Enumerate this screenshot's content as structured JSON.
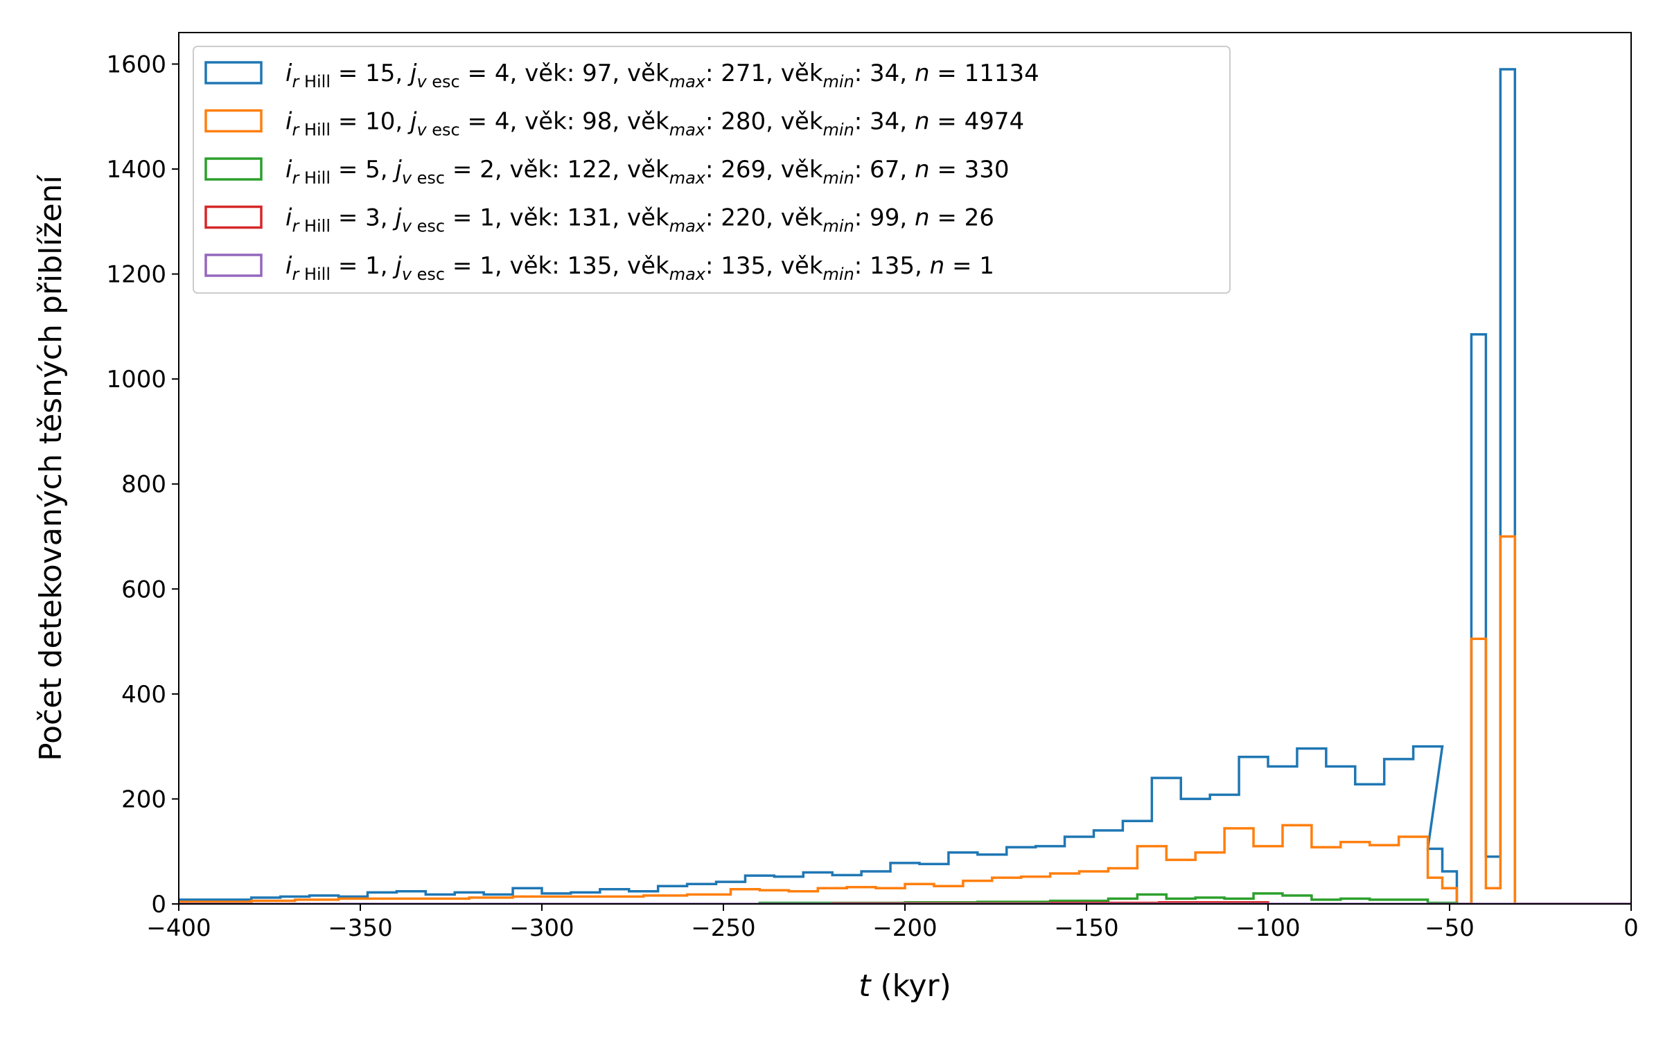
{
  "chart_data": {
    "type": "histogram",
    "xlabel_italic": "t",
    "xlabel_rest": " (kyr)",
    "ylabel": "Počet detekovaných těsných přiblížení",
    "xlim": [
      -400,
      0
    ],
    "ylim": [
      0,
      1660
    ],
    "xticks": [
      -400,
      -350,
      -300,
      -250,
      -200,
      -150,
      -100,
      -50,
      0
    ],
    "xtick_labels": [
      "−400",
      "−350",
      "−300",
      "−250",
      "−200",
      "−150",
      "−100",
      "−50",
      "0"
    ],
    "yticks": [
      0,
      200,
      400,
      600,
      800,
      1000,
      1200,
      1400,
      1600
    ],
    "ytick_labels": [
      "0",
      "200",
      "400",
      "600",
      "800",
      "1000",
      "1200",
      "1400",
      "1600"
    ],
    "grid": false,
    "legend_position": "top-left",
    "series": [
      {
        "name": "i_rHill = 15, j_vesc = 4, věk: 97, věk_max: 271, věk_min: 34, n = 11134",
        "legend": {
          "i": "15",
          "j": "4",
          "vek": " 97",
          "vek_max": "271",
          "vek_min": "34",
          "n": "11134"
        },
        "color": "#1f77b4",
        "bins": [
          {
            "x": -404,
            "w": 8,
            "y": 8
          },
          {
            "x": -396,
            "w": 8,
            "y": 8
          },
          {
            "x": -388,
            "w": 8,
            "y": 8
          },
          {
            "x": -380,
            "w": 8,
            "y": 12
          },
          {
            "x": -372,
            "w": 8,
            "y": 14
          },
          {
            "x": -364,
            "w": 8,
            "y": 16
          },
          {
            "x": -356,
            "w": 8,
            "y": 14
          },
          {
            "x": -348,
            "w": 8,
            "y": 22
          },
          {
            "x": -340,
            "w": 8,
            "y": 24
          },
          {
            "x": -332,
            "w": 8,
            "y": 18
          },
          {
            "x": -324,
            "w": 8,
            "y": 22
          },
          {
            "x": -316,
            "w": 8,
            "y": 18
          },
          {
            "x": -308,
            "w": 8,
            "y": 30
          },
          {
            "x": -300,
            "w": 8,
            "y": 20
          },
          {
            "x": -292,
            "w": 8,
            "y": 22
          },
          {
            "x": -284,
            "w": 8,
            "y": 28
          },
          {
            "x": -276,
            "w": 8,
            "y": 24
          },
          {
            "x": -268,
            "w": 8,
            "y": 34
          },
          {
            "x": -260,
            "w": 8,
            "y": 38
          },
          {
            "x": -252,
            "w": 8,
            "y": 42
          },
          {
            "x": -244,
            "w": 8,
            "y": 54
          },
          {
            "x": -236,
            "w": 8,
            "y": 52
          },
          {
            "x": -228,
            "w": 8,
            "y": 60
          },
          {
            "x": -220,
            "w": 8,
            "y": 55
          },
          {
            "x": -212,
            "w": 8,
            "y": 62
          },
          {
            "x": -204,
            "w": 8,
            "y": 78
          },
          {
            "x": -196,
            "w": 8,
            "y": 76
          },
          {
            "x": -188,
            "w": 8,
            "y": 98
          },
          {
            "x": -180,
            "w": 8,
            "y": 94
          },
          {
            "x": -172,
            "w": 8,
            "y": 108
          },
          {
            "x": -164,
            "w": 8,
            "y": 110
          },
          {
            "x": -156,
            "w": 8,
            "y": 128
          },
          {
            "x": -148,
            "w": 8,
            "y": 140
          },
          {
            "x": -140,
            "w": 8,
            "y": 158
          },
          {
            "x": -132,
            "w": 8,
            "y": 240
          },
          {
            "x": -124,
            "w": 8,
            "y": 200
          },
          {
            "x": -116,
            "w": 8,
            "y": 208
          },
          {
            "x": -108,
            "w": 8,
            "y": 280
          },
          {
            "x": -100,
            "w": 8,
            "y": 262
          },
          {
            "x": -92,
            "w": 8,
            "y": 296
          },
          {
            "x": -84,
            "w": 8,
            "y": 262
          },
          {
            "x": -76,
            "w": 8,
            "y": 228
          },
          {
            "x": -68,
            "w": 8,
            "y": 276
          },
          {
            "x": -60,
            "w": 8,
            "y": 300
          },
          {
            "x": -56,
            "w": 4,
            "y": 105
          },
          {
            "x": -52,
            "w": 4,
            "y": 62
          },
          {
            "x": -48,
            "w": 4,
            "y": 0
          },
          {
            "x": -44,
            "w": 4,
            "y": 1085
          },
          {
            "x": -40,
            "w": 4,
            "y": 90
          },
          {
            "x": -36,
            "w": 4,
            "y": 1590
          },
          {
            "x": -32,
            "w": 32,
            "y": 0
          }
        ]
      },
      {
        "name": "i_rHill = 10, j_vesc = 4, věk: 98, věk_max: 280, věk_min: 34, n = 4974",
        "legend": {
          "i": "10",
          "j": "4",
          "vek": " 98",
          "vek_max": "280",
          "vek_min": "34",
          "n": "4974"
        },
        "color": "#ff7f0e",
        "bins": [
          {
            "x": -404,
            "w": 12,
            "y": 4
          },
          {
            "x": -392,
            "w": 12,
            "y": 4
          },
          {
            "x": -380,
            "w": 12,
            "y": 6
          },
          {
            "x": -368,
            "w": 12,
            "y": 8
          },
          {
            "x": -356,
            "w": 12,
            "y": 10
          },
          {
            "x": -344,
            "w": 12,
            "y": 10
          },
          {
            "x": -332,
            "w": 12,
            "y": 10
          },
          {
            "x": -320,
            "w": 12,
            "y": 12
          },
          {
            "x": -308,
            "w": 12,
            "y": 14
          },
          {
            "x": -296,
            "w": 12,
            "y": 14
          },
          {
            "x": -284,
            "w": 12,
            "y": 14
          },
          {
            "x": -272,
            "w": 12,
            "y": 16
          },
          {
            "x": -260,
            "w": 12,
            "y": 18
          },
          {
            "x": -248,
            "w": 8,
            "y": 28
          },
          {
            "x": -240,
            "w": 8,
            "y": 26
          },
          {
            "x": -232,
            "w": 8,
            "y": 24
          },
          {
            "x": -224,
            "w": 8,
            "y": 30
          },
          {
            "x": -216,
            "w": 8,
            "y": 32
          },
          {
            "x": -208,
            "w": 8,
            "y": 30
          },
          {
            "x": -200,
            "w": 8,
            "y": 38
          },
          {
            "x": -192,
            "w": 8,
            "y": 34
          },
          {
            "x": -184,
            "w": 8,
            "y": 44
          },
          {
            "x": -176,
            "w": 8,
            "y": 50
          },
          {
            "x": -168,
            "w": 8,
            "y": 52
          },
          {
            "x": -160,
            "w": 8,
            "y": 58
          },
          {
            "x": -152,
            "w": 8,
            "y": 62
          },
          {
            "x": -144,
            "w": 8,
            "y": 68
          },
          {
            "x": -136,
            "w": 8,
            "y": 110
          },
          {
            "x": -128,
            "w": 8,
            "y": 84
          },
          {
            "x": -120,
            "w": 8,
            "y": 98
          },
          {
            "x": -112,
            "w": 8,
            "y": 144
          },
          {
            "x": -104,
            "w": 8,
            "y": 110
          },
          {
            "x": -96,
            "w": 8,
            "y": 150
          },
          {
            "x": -88,
            "w": 8,
            "y": 108
          },
          {
            "x": -80,
            "w": 8,
            "y": 118
          },
          {
            "x": -72,
            "w": 8,
            "y": 112
          },
          {
            "x": -64,
            "w": 8,
            "y": 128
          },
          {
            "x": -56,
            "w": 4,
            "y": 50
          },
          {
            "x": -52,
            "w": 4,
            "y": 30
          },
          {
            "x": -48,
            "w": 4,
            "y": 0
          },
          {
            "x": -44,
            "w": 4,
            "y": 505
          },
          {
            "x": -40,
            "w": 4,
            "y": 30
          },
          {
            "x": -36,
            "w": 4,
            "y": 700
          },
          {
            "x": -32,
            "w": 32,
            "y": 0
          }
        ]
      },
      {
        "name": "i_rHill = 5, j_vesc = 2, věk: 122, věk_max: 269, věk_min: 67, n = 330",
        "legend": {
          "i": " 5",
          "j": "2",
          "vek": "122",
          "vek_max": "269",
          "vek_min": "67",
          "n": "330"
        },
        "color": "#2ca02c",
        "bins": [
          {
            "x": -240,
            "w": 40,
            "y": 2
          },
          {
            "x": -200,
            "w": 20,
            "y": 3
          },
          {
            "x": -180,
            "w": 20,
            "y": 4
          },
          {
            "x": -160,
            "w": 16,
            "y": 6
          },
          {
            "x": -144,
            "w": 8,
            "y": 10
          },
          {
            "x": -136,
            "w": 8,
            "y": 18
          },
          {
            "x": -128,
            "w": 8,
            "y": 10
          },
          {
            "x": -120,
            "w": 8,
            "y": 12
          },
          {
            "x": -112,
            "w": 8,
            "y": 10
          },
          {
            "x": -104,
            "w": 8,
            "y": 20
          },
          {
            "x": -96,
            "w": 8,
            "y": 16
          },
          {
            "x": -88,
            "w": 8,
            "y": 8
          },
          {
            "x": -80,
            "w": 8,
            "y": 10
          },
          {
            "x": -72,
            "w": 16,
            "y": 8
          },
          {
            "x": -56,
            "w": 8,
            "y": 2
          }
        ]
      },
      {
        "name": "i_rHill = 3, j_vesc = 1, věk: 131, věk_max: 220, věk_min: 99, n = 26",
        "legend": {
          "i": " 3",
          "j": "1",
          "vek": "131",
          "vek_max": "220",
          "vek_min": "99",
          "n": "26"
        },
        "color": "#d62728",
        "bins": [
          {
            "x": -220,
            "w": 60,
            "y": 1
          },
          {
            "x": -160,
            "w": 30,
            "y": 2
          },
          {
            "x": -130,
            "w": 30,
            "y": 3
          }
        ]
      },
      {
        "name": "i_rHill = 1, j_vesc = 1, věk: 135, věk_max: 135, věk_min: 135, n = 1",
        "legend": {
          "i": " 1",
          "j": "1",
          "vek": "135",
          "vek_max": "135",
          "vek_min": "135",
          "n": "1"
        },
        "color": "#9467bd",
        "bins": [
          {
            "x": -400,
            "w": 400,
            "y": 0
          }
        ]
      }
    ]
  }
}
